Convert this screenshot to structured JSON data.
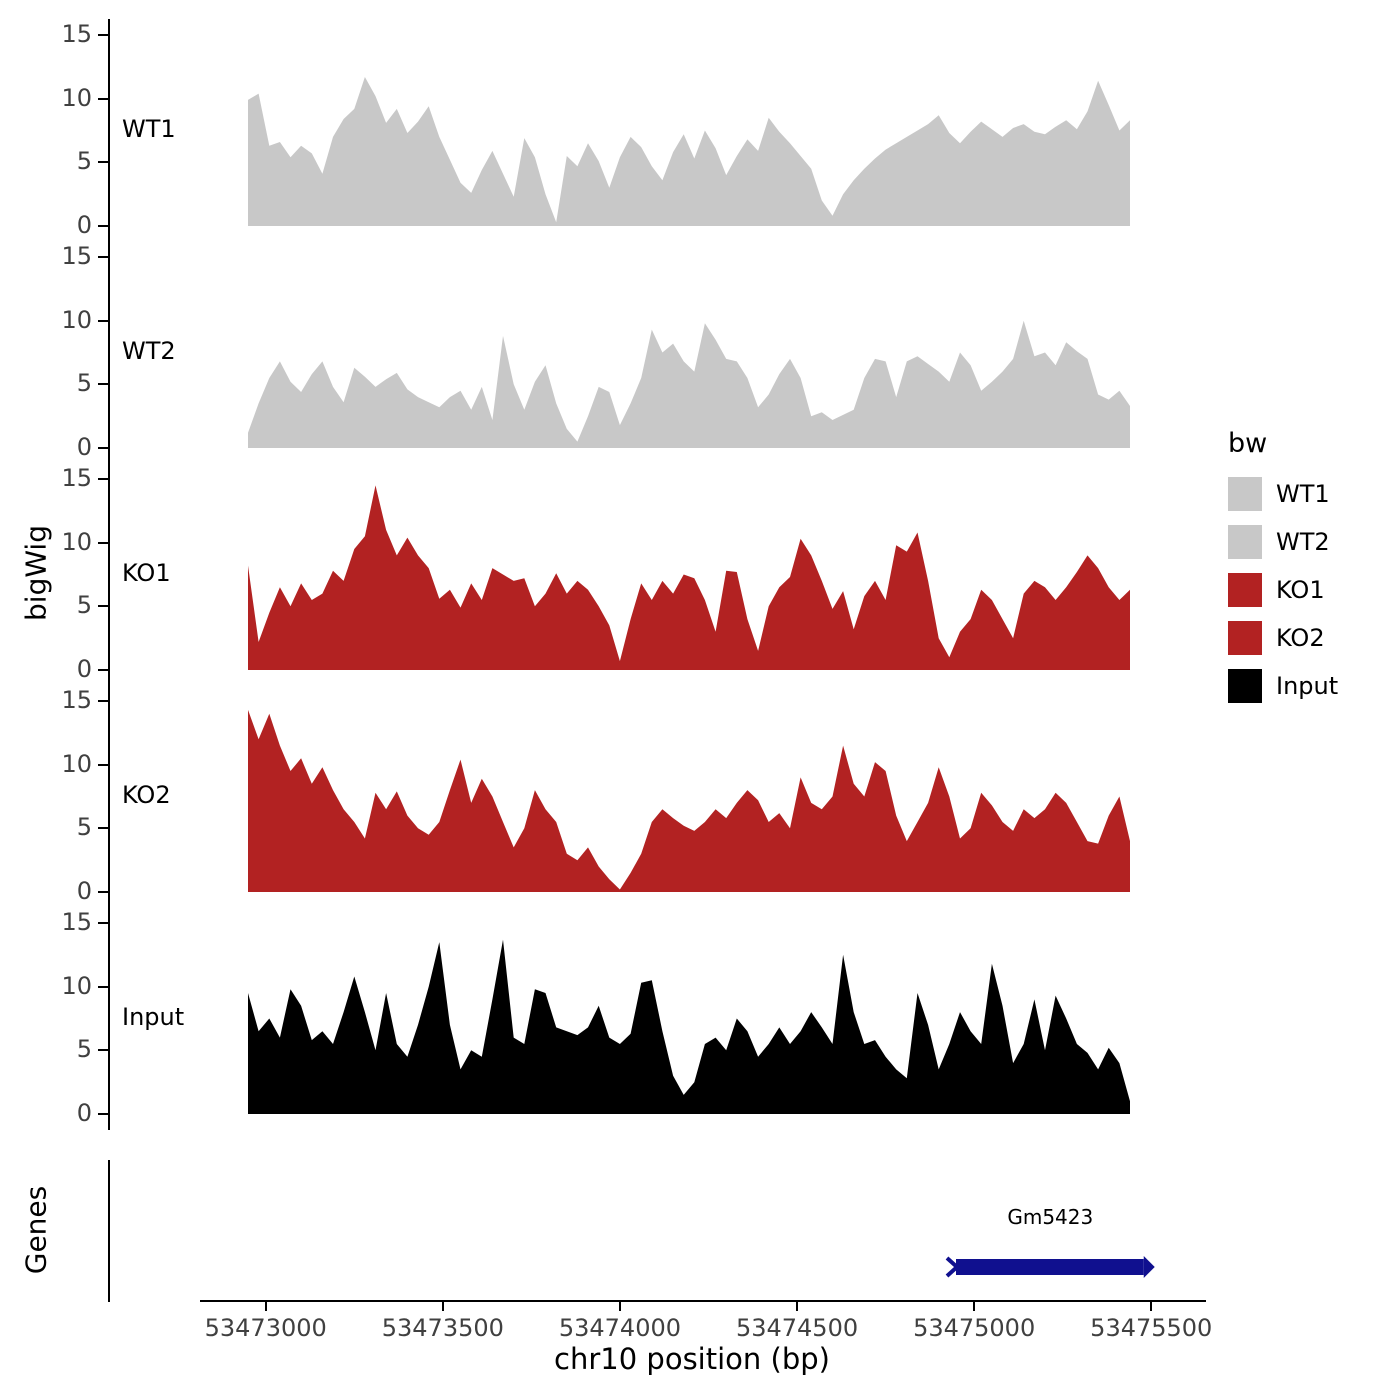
{
  "figure": {
    "y_axis_title": "bigWig",
    "genes_axis_title": "Genes",
    "x_axis_title": "chr10 position (bp)",
    "y_ticks": [
      15,
      10,
      5,
      0
    ]
  },
  "legend": {
    "title": "bw",
    "entries": [
      {
        "label": "WT1",
        "color": "#C8C8C8"
      },
      {
        "label": "WT2",
        "color": "#C8C8C8"
      },
      {
        "label": "KO1",
        "color": "#B22222"
      },
      {
        "label": "KO2",
        "color": "#B22222"
      },
      {
        "label": "Input",
        "color": "#000000"
      }
    ]
  },
  "chart_data": {
    "type": "area",
    "title": "",
    "xlabel": "chr10 position (bp)",
    "ylabel": "bigWig",
    "x_range": [
      53472950,
      53475440
    ],
    "ylim": [
      0,
      15
    ],
    "y_ticks": [
      0,
      5,
      10,
      15
    ],
    "x_ticks": [
      53473000,
      53473500,
      53474000,
      53474500,
      53475000,
      53475500
    ],
    "grid": false,
    "legend_position": "right",
    "tracks": [
      {
        "name": "WT1",
        "color": "#C8C8C8",
        "values": [
          9.9,
          10.4,
          6.3,
          6.6,
          5.4,
          6.3,
          5.7,
          4.1,
          7.0,
          8.4,
          9.2,
          11.7,
          10.2,
          8.1,
          9.2,
          7.3,
          8.2,
          9.4,
          7.0,
          5.2,
          3.4,
          2.6,
          4.4,
          5.9,
          4.1,
          2.3,
          6.9,
          5.4,
          2.5,
          0.3,
          5.5,
          4.7,
          6.5,
          5.1,
          3.0,
          5.4,
          7.0,
          6.2,
          4.7,
          3.6,
          5.8,
          7.2,
          5.3,
          7.5,
          6.1,
          4.0,
          5.5,
          6.8,
          5.9,
          8.5,
          7.4,
          6.5,
          5.5,
          4.5,
          2.0,
          0.8,
          2.5,
          3.6,
          4.5,
          5.3,
          6.0,
          6.5,
          7.0,
          7.5,
          8.0,
          8.7,
          7.3,
          6.5,
          7.4,
          8.2,
          7.6,
          7.0,
          7.7,
          8.0,
          7.4,
          7.2,
          7.8,
          8.3,
          7.6,
          9.0,
          11.4,
          9.5,
          7.5,
          8.3
        ]
      },
      {
        "name": "WT2",
        "color": "#C8C8C8",
        "values": [
          1.2,
          3.5,
          5.5,
          6.8,
          5.2,
          4.4,
          5.8,
          6.8,
          4.8,
          3.6,
          6.3,
          5.6,
          4.8,
          5.4,
          5.9,
          4.6,
          4.0,
          3.6,
          3.2,
          4.0,
          4.5,
          3.0,
          4.8,
          2.2,
          8.8,
          5.0,
          3.0,
          5.2,
          6.5,
          3.5,
          1.5,
          0.5,
          2.5,
          4.8,
          4.4,
          1.8,
          3.5,
          5.5,
          9.3,
          7.5,
          8.2,
          6.8,
          6.0,
          9.8,
          8.5,
          7.0,
          6.8,
          5.5,
          3.2,
          4.2,
          5.8,
          7.0,
          5.5,
          2.5,
          2.8,
          2.2,
          2.6,
          3.0,
          5.5,
          7.0,
          6.8,
          4.0,
          6.8,
          7.2,
          6.6,
          6.0,
          5.2,
          7.5,
          6.5,
          4.5,
          5.2,
          6.0,
          7.0,
          10.0,
          7.2,
          7.5,
          6.5,
          8.3,
          7.6,
          7.0,
          4.2,
          3.8,
          4.5,
          3.3
        ]
      },
      {
        "name": "KO1",
        "color": "#B22222",
        "values": [
          8.2,
          2.2,
          4.5,
          6.5,
          5.0,
          6.8,
          5.5,
          6.0,
          7.8,
          7.0,
          9.5,
          10.5,
          14.5,
          11.0,
          9.0,
          10.4,
          9.0,
          8.0,
          5.6,
          6.3,
          4.9,
          6.8,
          5.5,
          8.0,
          7.5,
          7.0,
          7.2,
          5.0,
          6.0,
          7.6,
          6.0,
          7.0,
          6.3,
          5.0,
          3.5,
          0.7,
          4.0,
          6.8,
          5.5,
          7.0,
          6.0,
          7.5,
          7.2,
          5.5,
          3.0,
          7.8,
          7.7,
          4.0,
          1.5,
          5.0,
          6.5,
          7.3,
          10.3,
          9.0,
          7.0,
          4.8,
          6.2,
          3.2,
          5.8,
          7.0,
          5.5,
          9.8,
          9.3,
          10.8,
          7.0,
          2.5,
          1.0,
          3.0,
          4.0,
          6.3,
          5.5,
          4.0,
          2.5,
          6.0,
          7.0,
          6.5,
          5.5,
          6.5,
          7.7,
          9.0,
          8.0,
          6.5,
          5.5,
          6.3
        ]
      },
      {
        "name": "KO2",
        "color": "#B22222",
        "values": [
          14.3,
          12.0,
          14.0,
          11.5,
          9.5,
          10.5,
          8.5,
          9.8,
          8.0,
          6.5,
          5.5,
          4.2,
          7.8,
          6.5,
          7.9,
          6.0,
          5.0,
          4.5,
          5.5,
          8.0,
          10.4,
          7.0,
          8.9,
          7.5,
          5.5,
          3.5,
          5.0,
          8.0,
          6.5,
          5.5,
          3.0,
          2.5,
          3.5,
          2.0,
          1.0,
          0.2,
          1.5,
          3.0,
          5.5,
          6.5,
          5.8,
          5.2,
          4.8,
          5.5,
          6.5,
          5.8,
          7.0,
          8.0,
          7.2,
          5.5,
          6.2,
          5.0,
          9.0,
          7.0,
          6.5,
          7.5,
          11.5,
          8.5,
          7.5,
          10.2,
          9.5,
          6.0,
          4.0,
          5.5,
          7.0,
          9.8,
          7.5,
          4.2,
          5.0,
          7.8,
          6.8,
          5.5,
          4.8,
          6.5,
          5.8,
          6.5,
          7.8,
          7.0,
          5.5,
          4.0,
          3.8,
          6.0,
          7.5,
          4.0
        ]
      },
      {
        "name": "Input",
        "color": "#000000",
        "values": [
          9.5,
          6.5,
          7.5,
          6.0,
          9.8,
          8.5,
          5.8,
          6.5,
          5.5,
          8.0,
          10.8,
          8.0,
          5.0,
          9.5,
          5.5,
          4.5,
          7.0,
          10.0,
          13.5,
          7.0,
          3.5,
          5.0,
          4.5,
          9.0,
          13.7,
          6.0,
          5.5,
          9.8,
          9.5,
          6.8,
          6.5,
          6.2,
          6.8,
          8.5,
          6.0,
          5.5,
          6.3,
          10.3,
          10.5,
          6.5,
          3.0,
          1.5,
          2.5,
          5.5,
          6.0,
          5.0,
          7.5,
          6.5,
          4.5,
          5.5,
          6.8,
          5.5,
          6.5,
          8.0,
          6.8,
          5.5,
          12.5,
          8.0,
          5.5,
          5.8,
          4.5,
          3.5,
          2.8,
          9.5,
          7.0,
          3.5,
          5.5,
          8.0,
          6.5,
          5.5,
          11.8,
          8.5,
          4.0,
          5.5,
          9.0,
          5.0,
          9.3,
          7.5,
          5.5,
          4.8,
          3.5,
          5.2,
          4.0,
          1.0
        ]
      }
    ],
    "gene_track": {
      "label": "Genes",
      "genes": [
        {
          "name": "Gm5423",
          "start": 53474950,
          "end": 53475480,
          "strand": "+",
          "color": "#10108F"
        }
      ]
    }
  }
}
